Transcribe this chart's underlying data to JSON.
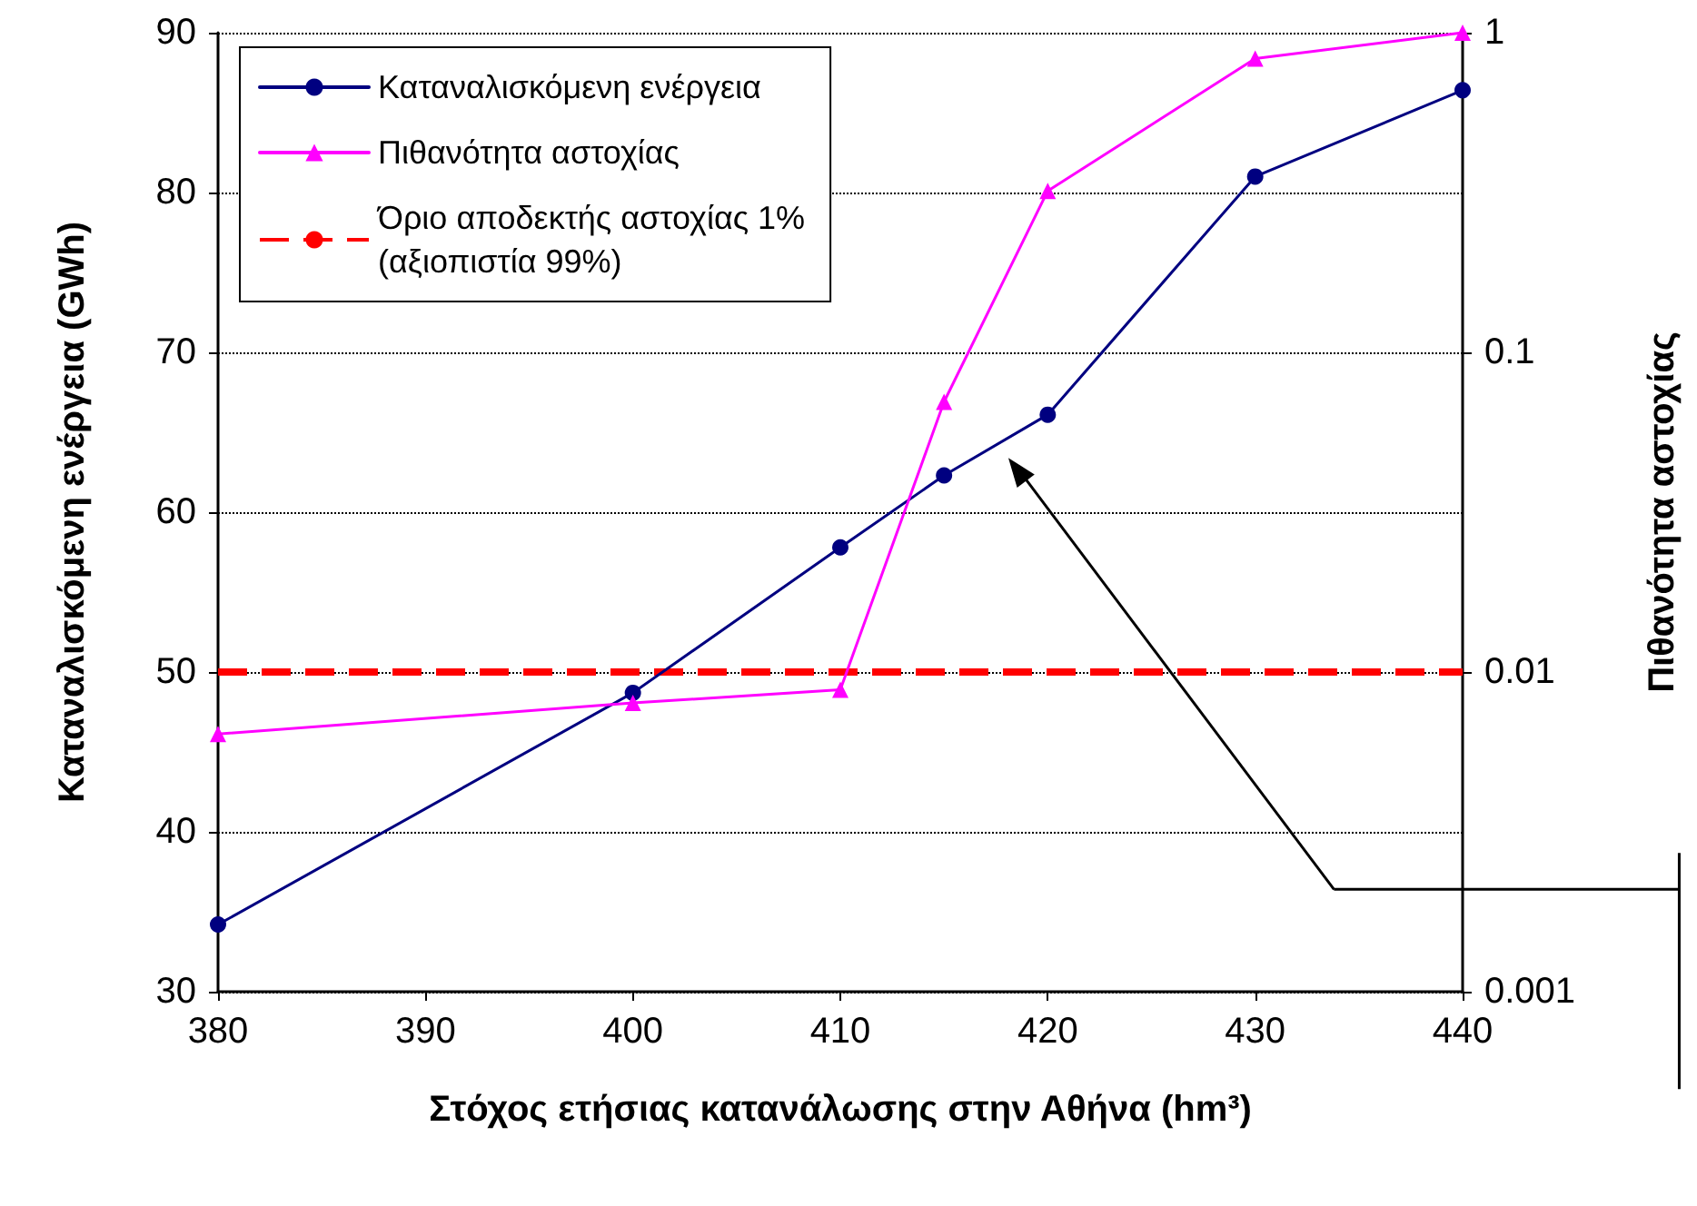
{
  "chart_data": {
    "type": "line",
    "xlabel": "Στόχος ετήσιας κατανάλωσης στην Αθήνα (hm³)",
    "ylabel": "Καταναλισκόμενη ενέργεια (GWh)",
    "y2label": "Πιθανότητα αστοχίας",
    "x": [
      380,
      400,
      410,
      415,
      420,
      430,
      440
    ],
    "series": [
      {
        "name": "Καταναλισκόμενη ενέργεια",
        "color": "#000080",
        "marker": "circle",
        "values": [
          34.2,
          48.7,
          57.8,
          62.3,
          66.1,
          81,
          86.4
        ]
      },
      {
        "name": "Πιθανότητα αστοχίας",
        "color": "#ff00ff",
        "marker": "triangle",
        "axis": "y2",
        "values": [
          0.0064,
          0.008,
          0.0088,
          0.07,
          0.32,
          0.83,
          1
        ]
      }
    ],
    "ref_lines": [
      {
        "axis": "y2",
        "value": 0.01,
        "label": "Όριο αποδεκτής αστοχίας 1%\n(αξιοπιστία 99%)",
        "color": "#ff0000",
        "line_style": "dashed"
      }
    ],
    "xlim": [
      380,
      440
    ],
    "xticks": [
      380,
      390,
      400,
      410,
      420,
      430,
      440
    ],
    "ylim": [
      30,
      90
    ],
    "yticks": [
      30,
      40,
      50,
      60,
      70,
      80,
      90
    ],
    "y2lim": [
      0.001,
      1
    ],
    "y2ticks": [
      0.001,
      0.01,
      0.1,
      1
    ],
    "log": "y2",
    "grid": "y",
    "legend": "top left"
  }
}
